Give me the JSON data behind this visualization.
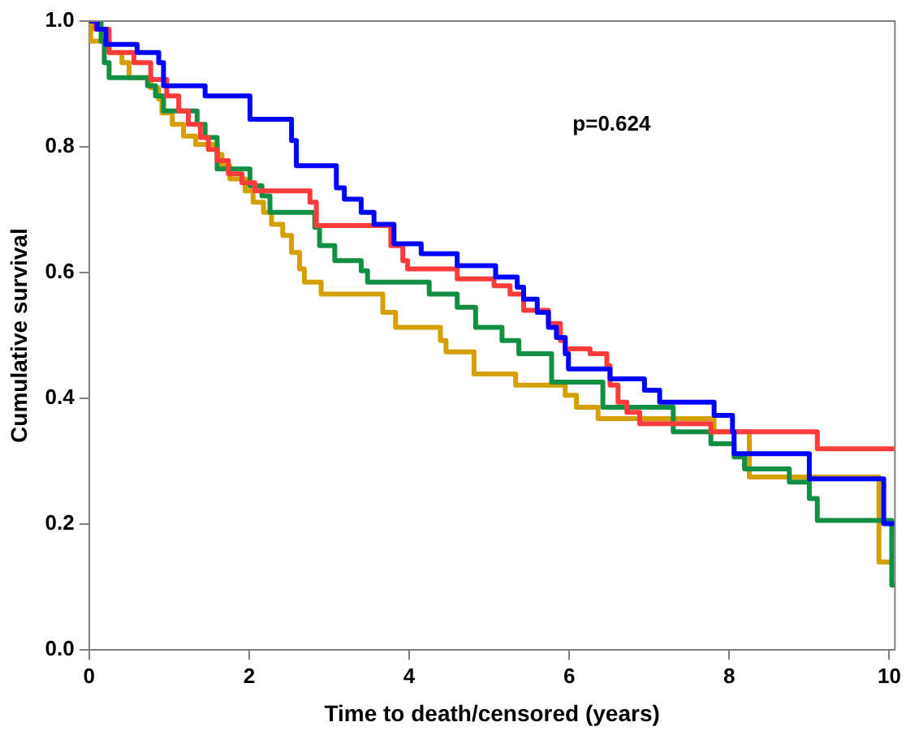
{
  "chart_data": {
    "type": "step",
    "xlabel": "Time to death/censored (years)",
    "ylabel": "Cumulative survival",
    "annotations": [
      "p=0.624"
    ],
    "xlim": [
      0,
      10.07
    ],
    "ylim": [
      0,
      1
    ],
    "xticks": [
      0,
      2,
      4,
      6,
      8,
      10
    ],
    "yticks": [
      {
        "value": 0,
        "label": "0.0"
      },
      {
        "value": 0.2,
        "label": "0.2"
      },
      {
        "value": 0.4,
        "label": "0.4"
      },
      {
        "value": 0.6,
        "label": "0.6"
      },
      {
        "value": 0.8,
        "label": "0.8"
      },
      {
        "value": 1,
        "label": "1.0"
      }
    ],
    "grid": false,
    "legend": false,
    "line_style": "solid",
    "marker": "none",
    "series": [
      {
        "color": "#0000ff",
        "x": [
          0,
          0.1,
          0.21,
          0.6,
          0.87,
          0.93,
          1.45,
          2.01,
          2.53,
          2.59,
          3.09,
          3.19,
          3.4,
          3.56,
          3.81,
          4.15,
          4.6,
          5.08,
          5.35,
          5.43,
          5.6,
          5.74,
          5.84,
          5.95,
          5.99,
          6.51,
          6.94,
          7.13,
          7.81,
          8.04,
          8.06,
          9.0,
          9.93,
          10.07
        ],
        "values": [
          1,
          0.987,
          0.963,
          0.95,
          0.934,
          0.897,
          0.881,
          0.844,
          0.81,
          0.77,
          0.735,
          0.717,
          0.696,
          0.677,
          0.646,
          0.63,
          0.611,
          0.593,
          0.577,
          0.558,
          0.537,
          0.513,
          0.497,
          0.471,
          0.447,
          0.431,
          0.413,
          0.394,
          0.373,
          0.347,
          0.312,
          0.272,
          0.201,
          0.201
        ]
      },
      {
        "color": "#ff3b3b",
        "x": [
          0,
          0.08,
          0.25,
          0.56,
          0.77,
          0.97,
          1.12,
          1.24,
          1.39,
          1.49,
          1.6,
          1.74,
          1.91,
          2.07,
          2.76,
          2.84,
          3.77,
          3.92,
          3.98,
          4.6,
          5.06,
          5.26,
          5.43,
          5.74,
          5.89,
          5.95,
          6.26,
          6.47,
          6.51,
          6.61,
          6.72,
          6.88,
          7.77,
          9.1,
          10.07
        ],
        "values": [
          1,
          0.987,
          0.95,
          0.934,
          0.907,
          0.881,
          0.857,
          0.836,
          0.815,
          0.796,
          0.778,
          0.757,
          0.743,
          0.73,
          0.712,
          0.675,
          0.643,
          0.619,
          0.606,
          0.59,
          0.579,
          0.566,
          0.54,
          0.519,
          0.492,
          0.479,
          0.471,
          0.452,
          0.421,
          0.394,
          0.378,
          0.36,
          0.347,
          0.32,
          0.32
        ]
      },
      {
        "color": "#138f44",
        "x": [
          0,
          0.15,
          0.19,
          0.25,
          0.73,
          0.83,
          0.93,
          1.35,
          1.45,
          1.6,
          2.01,
          2.16,
          2.26,
          2.82,
          2.88,
          3.07,
          3.4,
          3.48,
          4.25,
          4.6,
          4.83,
          5.16,
          5.37,
          5.78,
          6.42,
          7.3,
          7.77,
          8.06,
          8.19,
          8.75,
          9.0,
          9.1,
          10.03,
          10.07
        ],
        "values": [
          1,
          0.968,
          0.934,
          0.91,
          0.897,
          0.881,
          0.857,
          0.836,
          0.815,
          0.765,
          0.738,
          0.722,
          0.696,
          0.672,
          0.643,
          0.619,
          0.603,
          0.585,
          0.566,
          0.545,
          0.513,
          0.492,
          0.471,
          0.426,
          0.386,
          0.347,
          0.328,
          0.307,
          0.288,
          0.267,
          0.241,
          0.206,
          0.103,
          0.103
        ]
      },
      {
        "color": "#d4a000",
        "x": [
          0,
          0.02,
          0.25,
          0.41,
          0.5,
          0.77,
          0.87,
          0.91,
          1.04,
          1.18,
          1.33,
          1.6,
          1.66,
          1.76,
          1.95,
          2.05,
          2.18,
          2.28,
          2.42,
          2.53,
          2.63,
          2.69,
          2.9,
          3.67,
          3.83,
          4.39,
          4.46,
          4.81,
          5.33,
          5.95,
          6.09,
          6.36,
          7.81,
          8.25,
          9.87,
          10.03
        ],
        "values": [
          1,
          0.968,
          0.95,
          0.934,
          0.91,
          0.894,
          0.876,
          0.854,
          0.836,
          0.817,
          0.804,
          0.788,
          0.77,
          0.749,
          0.73,
          0.712,
          0.696,
          0.677,
          0.659,
          0.632,
          0.606,
          0.585,
          0.566,
          0.537,
          0.513,
          0.492,
          0.474,
          0.439,
          0.421,
          0.405,
          0.386,
          0.368,
          0.347,
          0.275,
          0.14,
          0.14
        ]
      }
    ]
  }
}
